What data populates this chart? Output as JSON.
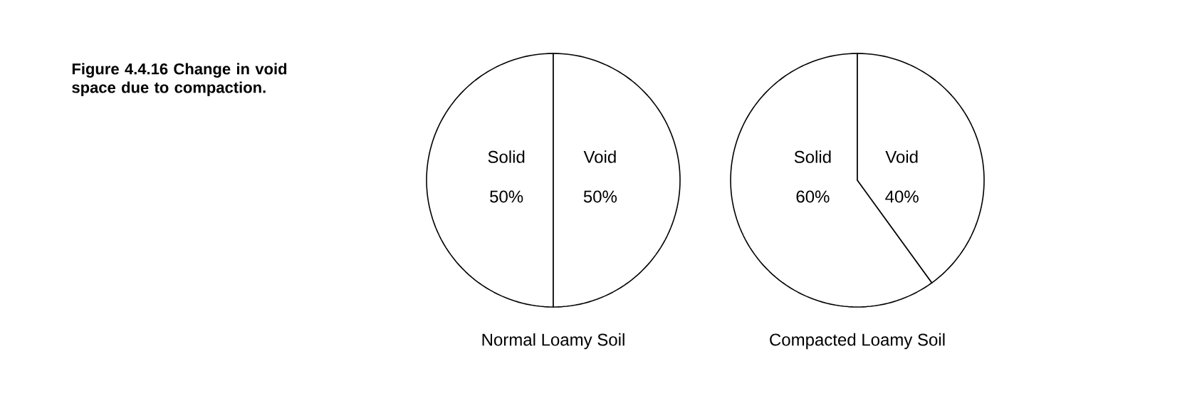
{
  "chart_data": [
    {
      "type": "pie",
      "title": "Figure 4.4.16 Change in void space due to compaction.",
      "xlabel": "Normal Loamy Soil",
      "categories": [
        "Solid",
        "Void"
      ],
      "values": [
        50,
        50
      ],
      "value_labels": [
        "50%",
        "50%"
      ],
      "colors": [
        "#ffffff",
        "#ffffff"
      ]
    },
    {
      "type": "pie",
      "xlabel": "Compacted Loamy Soil",
      "categories": [
        "Solid",
        "Void"
      ],
      "values": [
        60,
        40
      ],
      "value_labels": [
        "60%",
        "40%"
      ],
      "colors": [
        "#ffffff",
        "#ffffff"
      ]
    }
  ]
}
